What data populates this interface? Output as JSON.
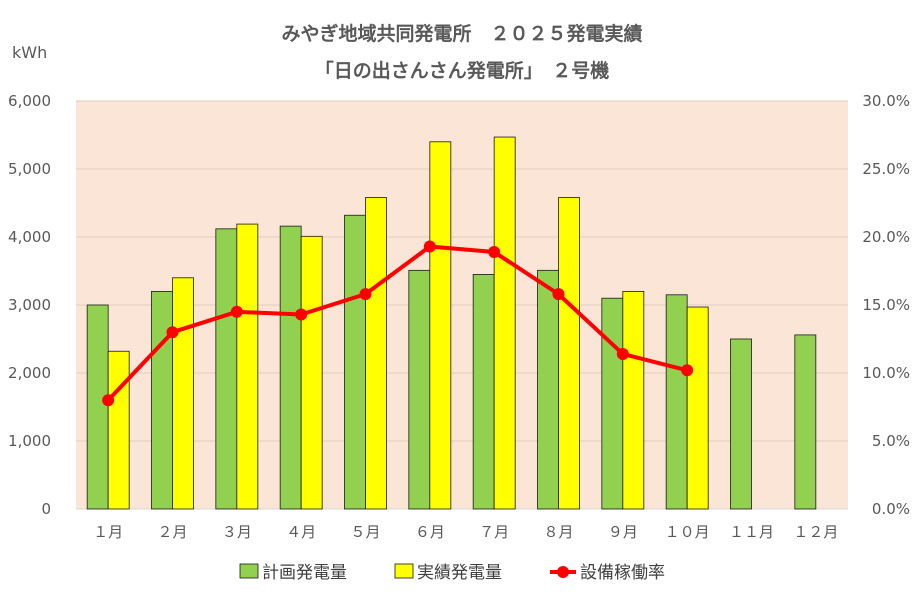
{
  "chart_data": {
    "type": "bar",
    "title_line1": "みやぎ地域共同発電所　２０２５発電実績",
    "title_line2": "「日の出さんさん発電所」　２号機",
    "y_unit": "kWh",
    "categories": [
      "１月",
      "２月",
      "３月",
      "４月",
      "５月",
      "６月",
      "７月",
      "８月",
      "９月",
      "１０月",
      "１１月",
      "１２月"
    ],
    "ylim": [
      0,
      6000
    ],
    "y_ticks": [
      "0",
      "1,000",
      "2,000",
      "3,000",
      "4,000",
      "5,000",
      "6,000"
    ],
    "y2lim": [
      0,
      30
    ],
    "y2_ticks": [
      "0.0%",
      "5.0%",
      "10.0%",
      "15.0%",
      "20.0%",
      "25.0%",
      "30.0%"
    ],
    "grid": true,
    "legend_position": "bottom",
    "plot_background": "#fbe5d6",
    "series": [
      {
        "name": "計画発電量",
        "kind": "bar",
        "axis": "left",
        "color": "#92d050",
        "values": [
          3000,
          3200,
          4120,
          4160,
          4320,
          3510,
          3450,
          3510,
          3100,
          3150,
          2500,
          2560
        ]
      },
      {
        "name": "実績発電量",
        "kind": "bar",
        "axis": "left",
        "color": "#ffff00",
        "values": [
          2320,
          3400,
          4190,
          4010,
          4580,
          5400,
          5470,
          4580,
          3200,
          2970,
          null,
          null
        ]
      },
      {
        "name": "設備稼働率",
        "kind": "line",
        "axis": "right",
        "color": "#ff0000",
        "values": [
          8.0,
          13.0,
          14.5,
          14.3,
          15.8,
          19.3,
          18.9,
          15.8,
          11.4,
          10.2,
          null,
          null
        ]
      }
    ]
  }
}
